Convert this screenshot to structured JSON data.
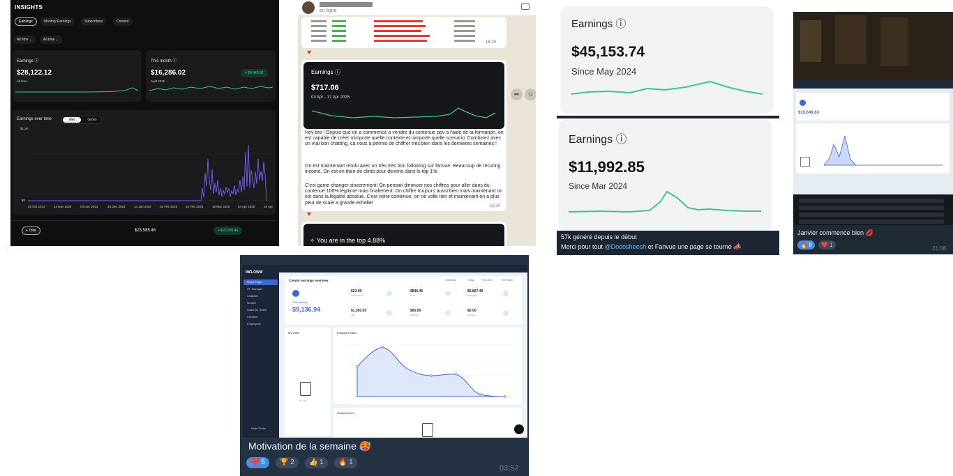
{
  "panel1": {
    "title": "INSIGHTS",
    "tabs": [
      "Earnings",
      "Monthly Earnings",
      "Subscribers",
      "Content"
    ],
    "filters": [
      "All time",
      "All time"
    ],
    "earnings_card": {
      "label": "Earnings",
      "value": "$28,122.12",
      "sub": "All time"
    },
    "month_card": {
      "label": "This month",
      "value": "$16,286.02",
      "sub": "April 2025",
      "badge": "+ $4,440.92"
    },
    "chart_title": "Earnings over time",
    "toggle": [
      "Net",
      "Gross"
    ],
    "y_ticks": [
      "$1.2K",
      "$0"
    ],
    "x_ticks": [
      "25 Oct 2024",
      "14 Nov 2024",
      "04 Dec 2024",
      "25 Dec 2024",
      "14 Jan 2025",
      "03 Feb 2025",
      "25 Feb 2025",
      "18 Mar 2025",
      "04 Apr 2025",
      "24 Apr"
    ],
    "total_label": "Total",
    "total_value": "$23,585.46",
    "total_badge": "+ $23,585.46",
    "accent": "#7c5cf5"
  },
  "panel2": {
    "contact_status": "en ligne",
    "top_time": "16:20",
    "card_label": "Earnings",
    "card_value": "$717.06",
    "card_range": "03 Apr - 17 Apr 2025",
    "message_p1": "Hey bro ! Depuis que on a commencé a vendre du contenue ppv a l'aide de ta formation, on est capable de créer n'importe quelle contexte et nimporte quelle scenario. Combinez avec un vrai bon chatting, ca nous a permis de chiffrer très bien dans les dernieres semaines !",
    "message_p2": "On est maintenant rendu avec un très très bon following sur fanvue. Beaucoup de recuring income. On est en train de climb pour devenir dans le top 1%.",
    "message_p3": "C'est game changer sincerement! On pensait diminuer nos chiffres pour aller dans du contenue 100% legitime mais finalement. On chiffre toujours aussi bien mais maintenant on est dans la légalité absolue. C'est notre contenue, on ne volle rien et maintenant on a plus peur de scale a grande echelle!",
    "message_time": "16:20",
    "top_banner": "You are in the top 4.88%"
  },
  "panel3": {
    "card1": {
      "label": "Earnings",
      "value": "$45,153.74",
      "sub": "Since May 2024"
    },
    "card2": {
      "label": "Earnings",
      "value": "$11,992.85",
      "sub": "Since Mar 2024"
    },
    "caption_line1": "57k généré depuis le début",
    "caption_pre": "Merci pour tout ",
    "caption_mention": "@Dodosheesh",
    "caption_post": " et Fanvue une page se tourne"
  },
  "panel4": {
    "caption": "Janvier commence bien",
    "reactions": [
      {
        "emoji": "🔥",
        "count": "8"
      },
      {
        "emoji": "❤️",
        "count": "1"
      }
    ],
    "time": "21:08",
    "screen_value": "$10,649.63"
  },
  "panel5": {
    "brand": "INFLOWW",
    "nav": [
      "Home Page",
      "OF Manager",
      "Analytics",
      "Growth",
      "Share for Share",
      "Creators",
      "Employees"
    ],
    "help": "Help Center",
    "overview_title": "Creator earnings overview",
    "total_label": "Total earnings",
    "total_value": "$9,136.94",
    "stats": [
      {
        "value": "$23.99",
        "label": "Subscriptions"
      },
      {
        "value": "$846.46",
        "label": "Posts"
      },
      {
        "value": "$6,807.49",
        "label": "Messages"
      },
      {
        "value": "$1,393.50",
        "label": "Tips"
      },
      {
        "value": "$65.50",
        "label": "Referrals"
      },
      {
        "value": "$0.00",
        "label": "Streams"
      }
    ],
    "period_tabs": [
      "Yesterday",
      "Today",
      "This week",
      "This month"
    ],
    "shifts_title": "My shifts",
    "shifts_empty": "No data",
    "sales_title": "Employee sales",
    "hours_title": "Worked hours",
    "caption": "Motivation de la semaine",
    "reactions": [
      {
        "emoji": "❤️",
        "count": "5"
      },
      {
        "emoji": "🏆",
        "count": "2"
      },
      {
        "emoji": "👍",
        "count": "1"
      },
      {
        "emoji": "🔥",
        "count": "1"
      }
    ],
    "time": "03:52"
  }
}
